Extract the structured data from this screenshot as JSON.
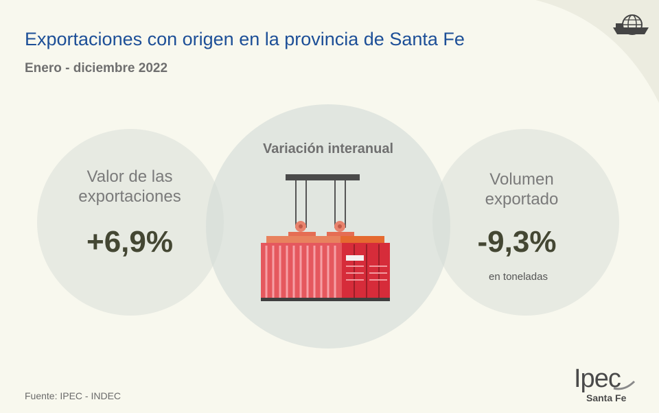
{
  "header": {
    "title": "Exportaciones con origen en la provincia de Santa Fe",
    "subtitle": "Enero - diciembre 2022"
  },
  "center": {
    "label": "Variación interanual",
    "icon": "container-crane-icon"
  },
  "left": {
    "label": "Valor de las exportaciones",
    "value": "+6,9%"
  },
  "right": {
    "label": "Volumen exportado",
    "value": "-9,3%",
    "unit": "en toneladas"
  },
  "footer": {
    "source": "Fuente: IPEC - INDEC"
  },
  "logo": {
    "text": "Ipec",
    "sub": "Santa Fe"
  },
  "icons": {
    "top_right": "ship-globe-icon"
  },
  "colors": {
    "background": "#f8f8ee",
    "title": "#1d4f97",
    "value": "#444733",
    "container": "#e03c4a",
    "container_accent": "#e86a34"
  }
}
